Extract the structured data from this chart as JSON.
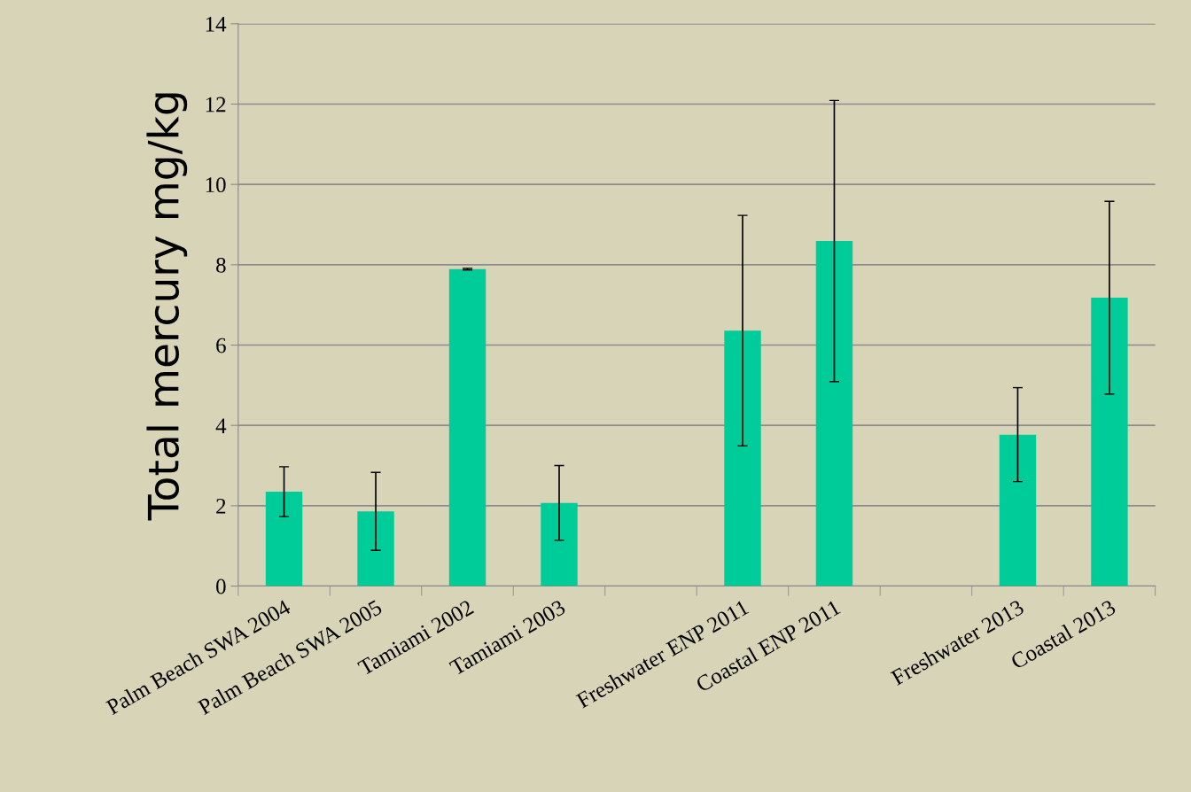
{
  "chart_data": {
    "type": "bar",
    "ylabel": "Total mercury mg/kg",
    "categories": [
      "Palm Beach SWA 2004",
      "Palm Beach SWA 2005",
      "Tamiami 2002",
      "Tamiami 2003",
      null,
      "Freshwater ENP 2011",
      "Coastal ENP 2011",
      null,
      "Freshwater 2013",
      "Coastal 2013"
    ],
    "values": [
      2.35,
      1.86,
      7.89,
      2.07,
      null,
      6.36,
      8.59,
      null,
      3.77,
      7.18
    ],
    "errors": [
      0.62,
      0.97,
      0.02,
      0.93,
      null,
      2.87,
      3.5,
      null,
      1.17,
      2.4
    ],
    "color": "#00cc99",
    "ylim": [
      0,
      14
    ],
    "yticks": [
      0,
      2,
      4,
      6,
      8,
      10,
      12,
      14
    ],
    "grid": "y"
  }
}
